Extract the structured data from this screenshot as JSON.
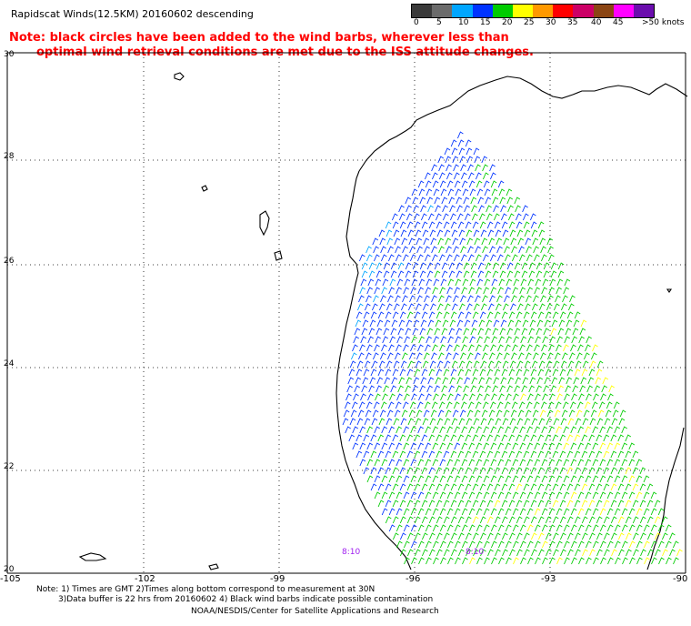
{
  "header": {
    "title": "Rapidscat Winds(12.5KM) 20160602 descending",
    "note_line1": "Note: black circles have been added to the wind barbs, wherever less than",
    "note_line2": "optimal wind retrieval conditions are met due to the ISS attitude changes."
  },
  "colorbar": {
    "labels": [
      "0",
      "5",
      "10",
      "15",
      "20",
      "25",
      "30",
      "35",
      "40",
      "45",
      ">50 knots"
    ],
    "colors": [
      "#3a3a3a",
      "#6b6b6b",
      "#00a6ff",
      "#0033ff",
      "#00cc00",
      "#ffff00",
      "#ff9900",
      "#ff0000",
      "#cc0066",
      "#8b4513",
      "#ff00ff",
      "#6a0dad"
    ]
  },
  "map": {
    "lat_labels": [
      "30",
      "28",
      "26",
      "24",
      "22",
      "20"
    ],
    "lon_labels": [
      "-105",
      "-102",
      "-99",
      "-96",
      "-93",
      "-90"
    ],
    "pass_times": [
      "8:10",
      "8:10"
    ]
  },
  "footer": {
    "line1": "Note: 1) Times are GMT 2)Times along bottom correspond to measurement at 30N",
    "line2": "3)Data buffer is 22 hrs from 20160602 4) Black wind barbs indicate possible contamination",
    "line3": "NOAA/NESDIS/Center for Satellite Applications and Research"
  }
}
